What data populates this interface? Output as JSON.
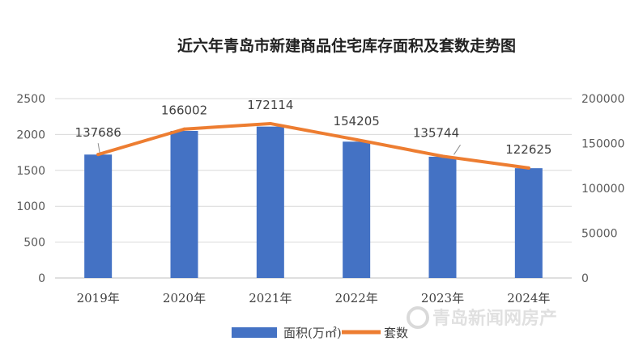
{
  "chart_data": {
    "type": "bar",
    "title": "近六年青岛市新建商品住宅库存面积及套数走势图",
    "categories": [
      "2019年",
      "2020年",
      "2021年",
      "2022年",
      "2023年",
      "2024年"
    ],
    "series": [
      {
        "name": "面积(万㎡)",
        "type": "bar",
        "axis": "left",
        "color": "#4472C4",
        "values": [
          1720,
          2050,
          2110,
          1900,
          1690,
          1530
        ]
      },
      {
        "name": "套数",
        "type": "line",
        "axis": "right",
        "color": "#ED7D31",
        "values": [
          137686,
          166002,
          172114,
          154205,
          135744,
          122625
        ],
        "labels": [
          "137686",
          "166002",
          "172114",
          "154205",
          "135744",
          "122625"
        ]
      }
    ],
    "y_left": {
      "min": 0,
      "max": 2500,
      "ticks": [
        "0",
        "500",
        "1000",
        "1500",
        "2000",
        "2500"
      ]
    },
    "y_right": {
      "min": 0,
      "max": 200000,
      "ticks": [
        "0",
        "50000",
        "100000",
        "150000",
        "200000"
      ]
    },
    "grid": true,
    "legend": "bottom"
  },
  "watermark": "青岛新闻网房产"
}
